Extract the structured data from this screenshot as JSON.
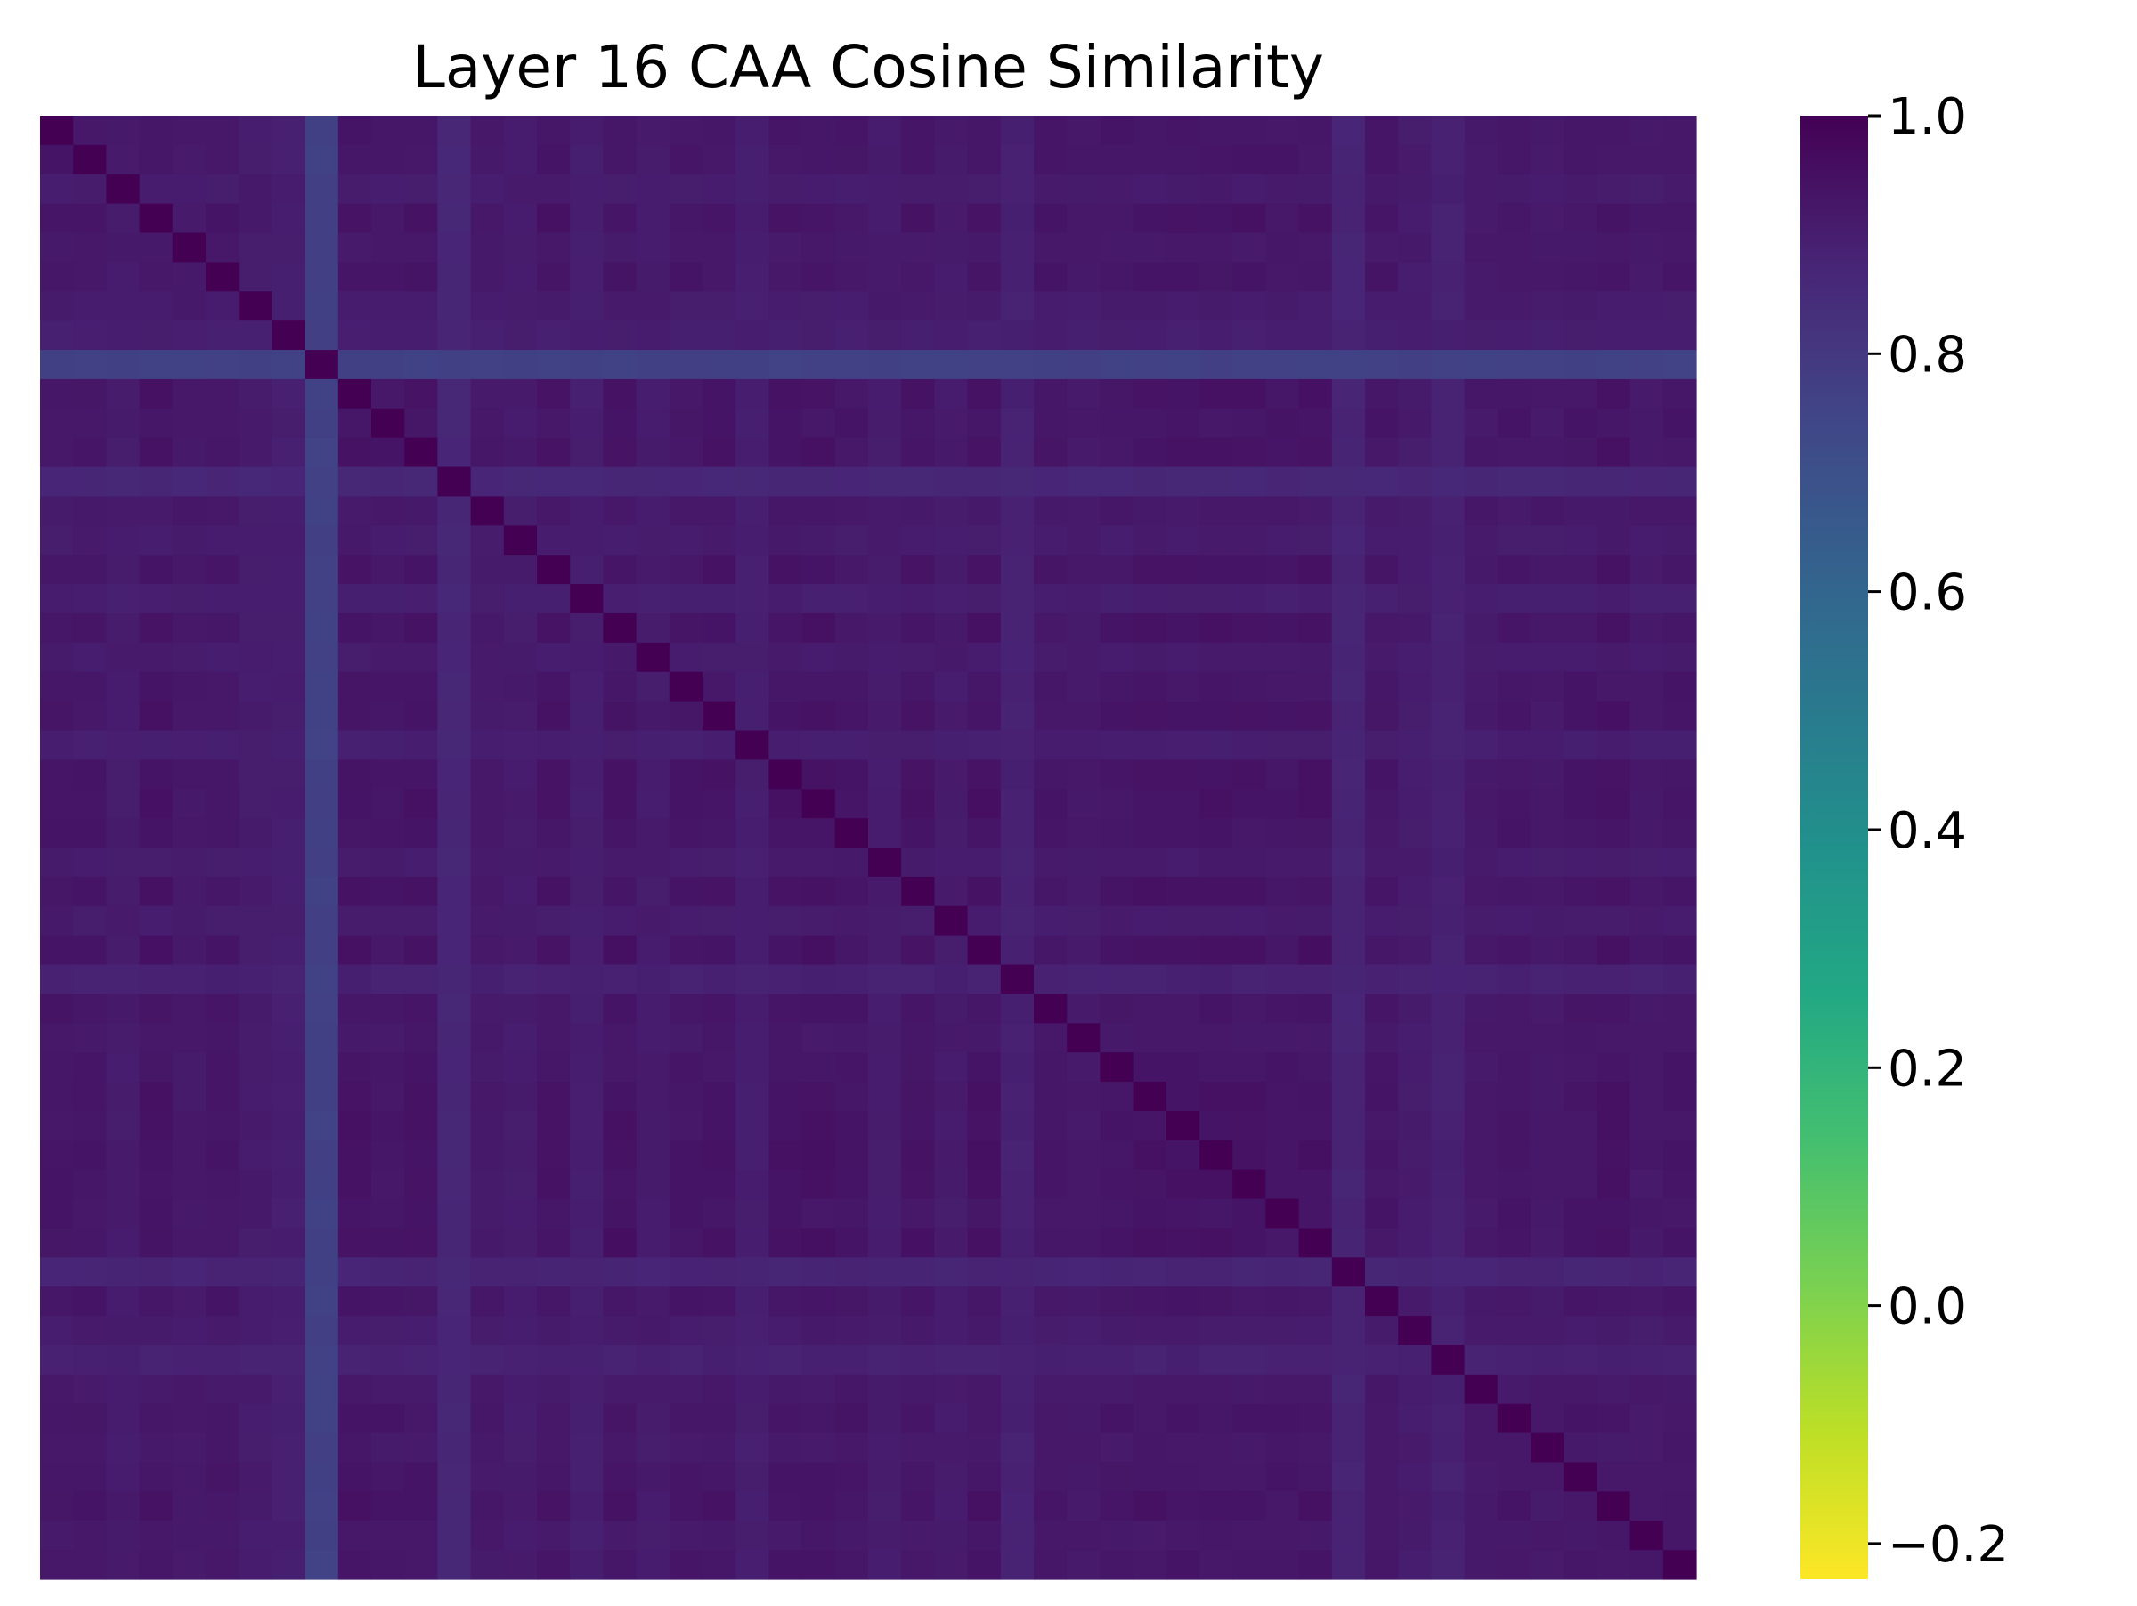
{
  "chart_data": {
    "type": "heatmap",
    "title": "Layer 16 CAA Cosine Similarity",
    "xlabel": "",
    "ylabel": "",
    "colormap": "viridis_r",
    "colorbar": {
      "vmin": -0.23,
      "vmax": 1.0,
      "ticks": [
        1.0,
        0.8,
        0.6,
        0.4,
        0.2,
        0.0,
        -0.2
      ],
      "tick_labels": [
        "1.0",
        "0.8",
        "0.6",
        "0.4",
        "0.2",
        "0.0",
        "−0.2"
      ]
    },
    "size": 50,
    "diagonal_value": 1.0,
    "default_value": 0.91,
    "row_means": [
      0.92,
      0.92,
      0.9,
      0.93,
      0.91,
      0.92,
      0.9,
      0.89,
      0.76,
      0.93,
      0.92,
      0.93,
      0.86,
      0.91,
      0.9,
      0.93,
      0.89,
      0.94,
      0.9,
      0.92,
      0.93,
      0.89,
      0.93,
      0.94,
      0.92,
      0.9,
      0.93,
      0.9,
      0.94,
      0.88,
      0.92,
      0.91,
      0.92,
      0.93,
      0.93,
      0.94,
      0.93,
      0.92,
      0.94,
      0.87,
      0.92,
      0.9,
      0.88,
      0.91,
      0.92,
      0.91,
      0.92,
      0.93,
      0.91,
      0.92
    ],
    "low_rows": [
      {
        "index": 8,
        "value": 0.76
      },
      {
        "index": 12,
        "value": 0.86
      },
      {
        "index": 29,
        "value": 0.88
      },
      {
        "index": 39,
        "value": 0.87
      },
      {
        "index": 42,
        "value": 0.88
      }
    ]
  }
}
